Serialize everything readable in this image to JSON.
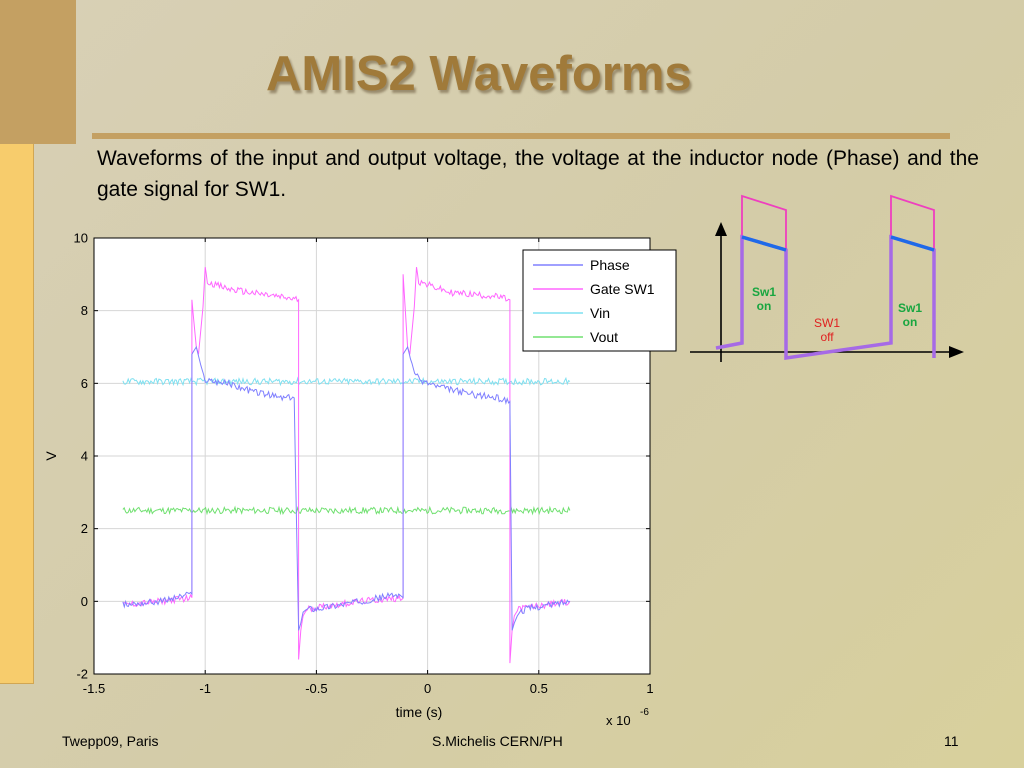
{
  "slide": {
    "title": "AMIS2 Waveforms",
    "description": "Waveforms of the input and output voltage, the voltage at the inductor node (Phase) and the gate signal for SW1.",
    "footer_left": "Twepp09, Paris",
    "footer_center": "S.Michelis CERN/PH",
    "footer_right": "11"
  },
  "chart_data": {
    "type": "line",
    "xlabel": "time (s)",
    "ylabel": "V",
    "x_multiplier_label": "x 10",
    "x_multiplier_exponent": "-6",
    "xlim": [
      -1.5,
      1.0
    ],
    "ylim": [
      -2,
      10
    ],
    "xticks": [
      "-1.5",
      "-1",
      "-0.5",
      "0",
      "0.5",
      "1"
    ],
    "yticks": [
      "-2",
      "0",
      "2",
      "4",
      "6",
      "8",
      "10"
    ],
    "grid": true,
    "legend_position": "top-right",
    "x_unit_note": "x values in microseconds",
    "series": [
      {
        "name": "Phase",
        "color": "#8080ff",
        "x": [
          -1.37,
          -1.2,
          -1.06,
          -1.06,
          -1.04,
          -1.02,
          -1.0,
          -0.9,
          -0.8,
          -0.66,
          -0.6,
          -0.58,
          -0.57,
          -0.56,
          -0.54,
          -0.5,
          -0.3,
          -0.13,
          -0.11,
          -0.11,
          -0.09,
          -0.07,
          -0.04,
          0.05,
          0.2,
          0.31,
          0.37,
          0.38,
          0.39,
          0.41,
          0.45,
          0.55,
          0.64
        ],
        "y": [
          -0.1,
          0.0,
          0.2,
          6.8,
          7.0,
          6.5,
          6.1,
          6.0,
          5.8,
          5.6,
          5.6,
          -0.8,
          -0.6,
          -0.3,
          -0.2,
          -0.2,
          0.0,
          0.2,
          0.1,
          6.8,
          7.0,
          6.5,
          6.1,
          5.9,
          5.7,
          5.6,
          5.5,
          -0.8,
          -0.6,
          -0.3,
          -0.2,
          -0.1,
          0.0
        ]
      },
      {
        "name": "Gate SW1",
        "color": "#ff66ff",
        "x": [
          -1.37,
          -1.2,
          -1.06,
          -1.06,
          -1.04,
          -1.03,
          -1.01,
          -1.0,
          -0.99,
          -0.9,
          -0.8,
          -0.58,
          -0.58,
          -0.57,
          -0.56,
          -0.54,
          -0.3,
          -0.11,
          -0.11,
          -0.09,
          -0.08,
          -0.06,
          -0.05,
          -0.04,
          0.1,
          0.3,
          0.37,
          0.37,
          0.38,
          0.39,
          0.41,
          0.64
        ],
        "y": [
          -0.1,
          0.0,
          0.1,
          8.3,
          7.0,
          6.8,
          8.1,
          9.2,
          8.8,
          8.6,
          8.5,
          8.3,
          -1.6,
          -0.8,
          -0.4,
          -0.2,
          0.0,
          0.1,
          9.0,
          7.0,
          6.8,
          8.1,
          9.2,
          8.8,
          8.5,
          8.4,
          8.3,
          -1.7,
          -0.8,
          -0.4,
          -0.2,
          0.0
        ]
      },
      {
        "name": "Vin",
        "color": "#7fe0f0",
        "x": [
          -1.37,
          0.64
        ],
        "y": [
          6.05,
          6.05
        ]
      },
      {
        "name": "Vout",
        "color": "#70e070",
        "x": [
          -1.37,
          0.64
        ],
        "y": [
          2.5,
          2.5
        ]
      }
    ]
  },
  "inset": {
    "label_on_left": "Sw1\non",
    "label_off": "SW1\noff",
    "label_on_right": "Sw1\non",
    "colors": {
      "gate": "#ee3fbf",
      "phase": "#1e6ae8",
      "outline": "#a66ae6",
      "on_label": "#18a640",
      "off_label": "#e02020"
    }
  }
}
